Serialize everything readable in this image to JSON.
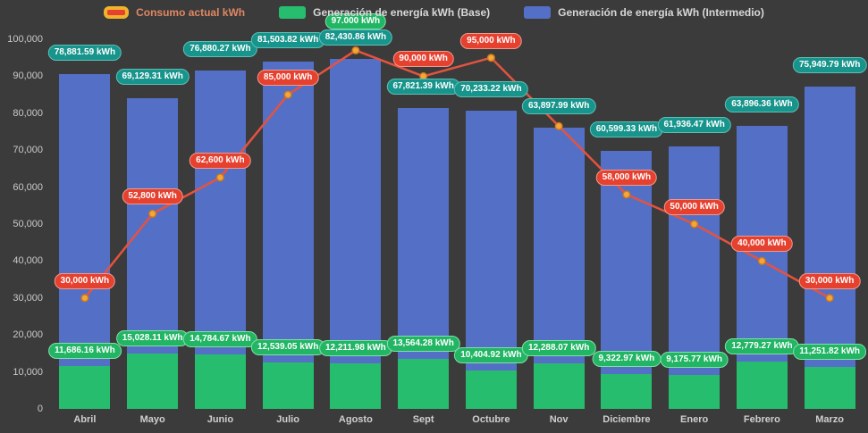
{
  "legend": [
    {
      "label": "Consumo actual kWh",
      "swatch": "red-line"
    },
    {
      "label": "Generación de energía kWh (Base)",
      "swatch": "green"
    },
    {
      "label": "Generación de energía kWh (Intermedio)",
      "swatch": "blue"
    }
  ],
  "chart_data": {
    "type": "bar",
    "stacked": true,
    "legend_position": "top",
    "grid": false,
    "ylim": [
      0,
      100000
    ],
    "y_tick_step": 10000,
    "y_ticks": [
      "0",
      "10,000",
      "20,000",
      "30,000",
      "40,000",
      "50,000",
      "60,000",
      "70,000",
      "80,000",
      "90,000",
      "100,000"
    ],
    "categories": [
      "Abril",
      "Mayo",
      "Junio",
      "Julio",
      "Agosto",
      "Sept",
      "Octubre",
      "Nov",
      "Diciembre",
      "Enero",
      "Febrero",
      "Marzo"
    ],
    "series": [
      {
        "name": "Generación de energía kWh (Base)",
        "type": "bar",
        "stack": "total",
        "color": "#27bd6e",
        "label_style": "green",
        "values": [
          11686.16,
          15028.11,
          14784.67,
          12539.05,
          12211.98,
          13564.28,
          10404.92,
          12288.07,
          9322.97,
          9175.77,
          12779.27,
          11251.82
        ],
        "labels": [
          "11,686.16 kWh",
          "15,028.11 kWh",
          "14,784.67 kWh",
          "12,539.05 kWh",
          "12,211.98 kWh",
          "13,564.28 kWh",
          "10,404.92 kWh",
          "12,288.07 kWh",
          "9,322.97 kWh",
          "9,175.77 kWh",
          "12,779.27 kWh",
          "11,251.82 kWh"
        ]
      },
      {
        "name": "Generación de energía kWh (Intermedio)",
        "type": "bar",
        "stack": "total",
        "color": "#5470c6",
        "label_style": "teal",
        "values": [
          78881.59,
          69129.31,
          76880.27,
          81503.82,
          82430.86,
          67821.39,
          70233.22,
          63897.99,
          60599.33,
          61936.47,
          63896.36,
          75949.79
        ],
        "labels": [
          "78,881.59 kWh",
          "69,129.31 kWh",
          "76,880.27 kWh",
          "81,503.82 kWh",
          "82,430.86 kWh",
          "67,821.39 kWh",
          "70,233.22 kWh",
          "63,897.99 kWh",
          "60,599.33 kWh",
          "61,936.47 kWh",
          "63,896.36 kWh",
          "75,949.79 kWh"
        ]
      },
      {
        "name": "Consumo actual kWh",
        "type": "line",
        "color": "#e4533f",
        "marker_color": "#f4a63b",
        "marker_border": "#d07919",
        "label_style": "red",
        "values": [
          30000,
          52800,
          62600,
          85000,
          97000,
          90000,
          95000,
          76500,
          58000,
          50000,
          40000,
          30000
        ],
        "labels": [
          "30,000 kWh",
          "52,800 kWh",
          "62,600 kWh",
          "85,000 kWh",
          null,
          "90,000 kWh",
          "95,000 kWh",
          null,
          "58,000 kWh",
          "50,000 kWh",
          "40,000 kWh",
          "30,000 kWh"
        ]
      }
    ],
    "annotations": [
      {
        "index": 4,
        "label": "97.000 kWh",
        "style": "green"
      }
    ],
    "colors": {
      "background": "#3b3b3b",
      "bar_blue": "#5470c6",
      "bar_green": "#27bd6e",
      "line_red": "#e4533f",
      "dot_orange": "#f4a63b",
      "dot_border": "#d07919",
      "badge_teal": "#17948b",
      "badge_green": "#21b564",
      "badge_red": "#e6402f",
      "axis_text": "#c9c9c9"
    }
  }
}
